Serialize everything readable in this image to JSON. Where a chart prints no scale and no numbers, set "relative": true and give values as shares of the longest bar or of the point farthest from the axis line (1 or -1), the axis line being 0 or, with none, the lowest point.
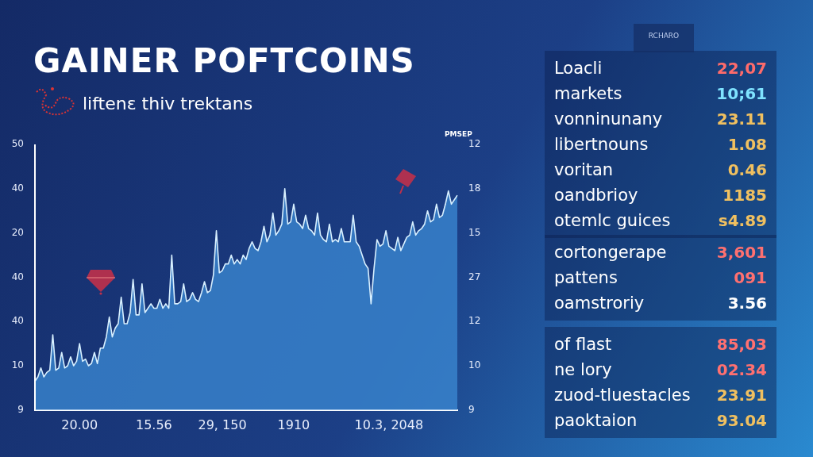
{
  "chart_data": [
    {
      "type": "area",
      "title": "GAINER POFTCOINS",
      "subtitle": "liftenε thiv trektans",
      "y2label": "PMSEP",
      "relative": true,
      "annotations": [
        "50",
        "40",
        "20",
        "40",
        "40",
        "10",
        "9",
        "12",
        "18",
        "15",
        "27",
        "12",
        "10",
        "9"
      ],
      "categories": [
        null,
        null,
        null,
        null,
        null,
        null,
        null,
        null,
        null,
        null,
        null,
        null,
        null,
        null,
        null,
        "20.00",
        null,
        null,
        null,
        null,
        null,
        null,
        null,
        null,
        null,
        null,
        null,
        null,
        null,
        null,
        null,
        null,
        null,
        null,
        null,
        null,
        null,
        null,
        null,
        null,
        "15.56",
        null,
        null,
        null,
        null,
        null,
        null,
        null,
        null,
        null,
        null,
        null,
        null,
        null,
        null,
        null,
        null,
        null,
        null,
        null,
        null,
        null,
        null,
        "29, 150",
        null,
        null,
        null,
        null,
        null,
        null,
        null,
        null,
        null,
        null,
        null,
        null,
        null,
        null,
        null,
        null,
        null,
        null,
        null,
        null,
        null,
        null,
        null,
        "1910",
        null,
        null,
        null,
        null,
        null,
        null,
        null,
        null,
        null,
        null,
        null,
        null,
        null,
        null,
        null,
        null,
        null,
        null,
        null,
        null,
        null,
        null,
        null,
        null,
        null,
        null,
        null,
        null,
        null,
        null,
        null,
        "10.3, 2048",
        null,
        null,
        null,
        null,
        null,
        null,
        null,
        null,
        null,
        null,
        null,
        null,
        null,
        null,
        null,
        null,
        null,
        null,
        null,
        null,
        null,
        null,
        null
      ],
      "legend": false,
      "marker": "none",
      "series": [
        {
          "color": "#3a86d0",
          "values": [
            0.13,
            0.15,
            0.19,
            0.15,
            0.17,
            0.18,
            0.34,
            0.18,
            0.19,
            0.26,
            0.19,
            0.2,
            0.24,
            0.2,
            0.22,
            0.3,
            0.22,
            0.23,
            0.2,
            0.21,
            0.26,
            0.21,
            0.28,
            0.28,
            0.33,
            0.42,
            0.33,
            0.37,
            0.39,
            0.51,
            0.39,
            0.39,
            0.44,
            0.59,
            0.43,
            0.43,
            0.57,
            0.44,
            0.46,
            0.48,
            0.46,
            0.46,
            0.5,
            0.46,
            0.48,
            0.46,
            0.7,
            0.48,
            0.48,
            0.49,
            0.57,
            0.49,
            0.5,
            0.53,
            0.5,
            0.49,
            0.53,
            0.58,
            0.53,
            0.54,
            0.61,
            0.81,
            0.62,
            0.63,
            0.66,
            0.66,
            0.7,
            0.66,
            0.68,
            0.66,
            0.7,
            0.68,
            0.73,
            0.76,
            0.73,
            0.72,
            0.76,
            0.83,
            0.76,
            0.79,
            0.89,
            0.79,
            0.81,
            0.84,
            1,
            0.84,
            0.85,
            0.93,
            0.85,
            0.84,
            0.82,
            0.88,
            0.82,
            0.81,
            0.79,
            0.89,
            0.79,
            0.77,
            0.76,
            0.84,
            0.76,
            0.77,
            0.76,
            0.82,
            0.76,
            0.76,
            0.76,
            0.88,
            0.76,
            0.74,
            0.7,
            0.66,
            0.64,
            0.48,
            0.64,
            0.77,
            0.74,
            0.75,
            0.81,
            0.74,
            0.73,
            0.72,
            0.78,
            0.72,
            0.75,
            0.78,
            0.79,
            0.85,
            0.79,
            0.81,
            0.82,
            0.84,
            0.9,
            0.85,
            0.86,
            0.93,
            0.87,
            0.88,
            0.93,
            0.99,
            0.93,
            0.95,
            0.97
          ]
        }
      ]
    },
    {
      "type": "other",
      "title": "RCHARO",
      "annotations": [
        "Loacli",
        "22,07",
        "markets",
        "10;61",
        "vonninunany",
        "23.11",
        "libertnouns",
        "1.08",
        "voritan",
        "0.46",
        "oandbrioy",
        "1185",
        "otemlc guices",
        "s4.89"
      ],
      "colors": [
        "#ff6b6b",
        "#7fe3ff",
        "#f0c060",
        "#f0c060",
        "#f0c060",
        "#f0c060",
        "#f0c060"
      ]
    },
    {
      "type": "other",
      "annotations": [
        "cortongerape",
        "3,601",
        "pattens",
        "091",
        "oamstroriy",
        "3.56"
      ],
      "colors": [
        "#ff7070",
        "#ff7070",
        "#ffffff"
      ]
    },
    {
      "type": "other",
      "annotations": [
        "of flast",
        "85,03",
        "ne lory",
        "02.34",
        "zuod-tluestacles",
        "23.91",
        "paoktaion",
        "93.04"
      ],
      "colors": [
        "#ff7070",
        "#ff7070",
        "#f0c060",
        "#f0c060"
      ]
    }
  ]
}
